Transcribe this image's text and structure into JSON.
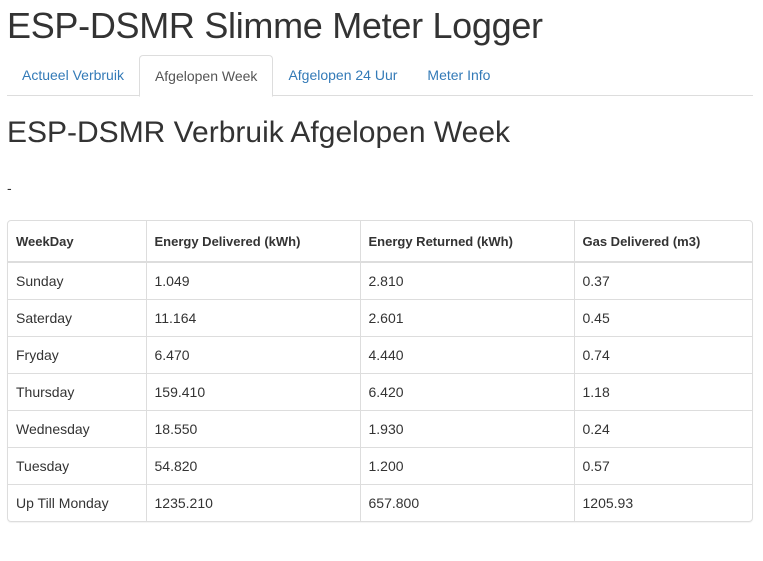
{
  "app": {
    "title": "ESP-DSMR Slimme Meter Logger"
  },
  "tabs": [
    {
      "label": "Actueel Verbruik",
      "active": false
    },
    {
      "label": "Afgelopen Week",
      "active": true
    },
    {
      "label": "Afgelopen 24 Uur",
      "active": false
    },
    {
      "label": "Meter Info",
      "active": false
    }
  ],
  "colors": {
    "link": "#337ab7",
    "active_tab_text": "#555555",
    "border": "#dddddd",
    "text": "#333333"
  },
  "main": {
    "title": "ESP-DSMR Verbruik Afgelopen Week",
    "status": "-"
  },
  "table": {
    "headers": [
      "WeekDay",
      "Energy Delivered (kWh)",
      "Energy Returned (kWh)",
      "Gas Delivered (m3)"
    ],
    "rows": [
      [
        "Sunday",
        "1.049",
        "2.810",
        "0.37"
      ],
      [
        "Saterday",
        "11.164",
        "2.601",
        "0.45"
      ],
      [
        "Fryday",
        "6.470",
        "4.440",
        "0.74"
      ],
      [
        "Thursday",
        "159.410",
        "6.420",
        "1.18"
      ],
      [
        "Wednesday",
        "18.550",
        "1.930",
        "0.24"
      ],
      [
        "Tuesday",
        "54.820",
        "1.200",
        "0.57"
      ],
      [
        "Up Till Monday",
        "1235.210",
        "657.800",
        "1205.93"
      ]
    ]
  }
}
